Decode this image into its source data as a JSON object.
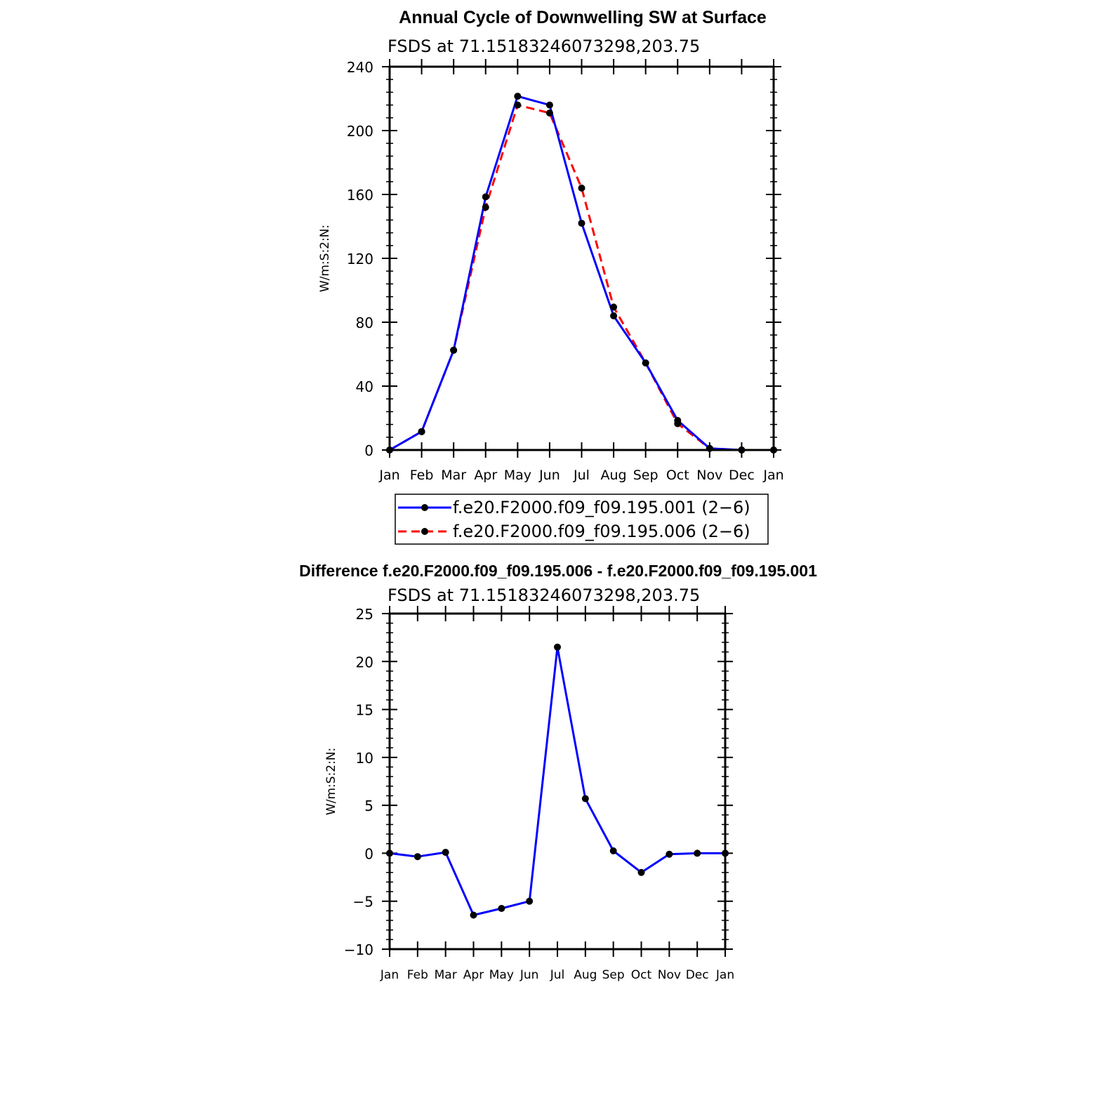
{
  "chart_data": [
    {
      "type": "line",
      "title": "Annual Cycle of Downwelling SW at Surface",
      "subtitle": "FSDS at 71.15183246073298,203.75",
      "ylabel": "W/m:S:2:N:",
      "xlabel": "",
      "categories": [
        "Jan",
        "Feb",
        "Mar",
        "Apr",
        "May",
        "Jun",
        "Jul",
        "Aug",
        "Sep",
        "Oct",
        "Nov",
        "Dec",
        "Jan"
      ],
      "ylim": [
        0,
        240
      ],
      "yticks": [
        0,
        40,
        80,
        120,
        160,
        200,
        240
      ],
      "grid": false,
      "legend_position": "bottom",
      "series": [
        {
          "name": "f.e20.F2000.f09_f09.195.001 (2−6)",
          "color": "#0000ff",
          "style": "solid",
          "values": [
            0,
            11.5,
            62.5,
            158.5,
            221.5,
            216,
            142,
            84,
            54.5,
            18.5,
            1,
            0,
            0
          ]
        },
        {
          "name": "f.e20.F2000.f09_f09.195.006 (2−6)",
          "color": "#ff0000",
          "style": "dashed",
          "values": [
            0,
            11.5,
            62.5,
            152,
            216,
            211,
            164,
            89.5,
            54.5,
            16.5,
            1,
            0,
            0
          ]
        }
      ]
    },
    {
      "type": "line",
      "title": "Difference f.e20.F2000.f09_f09.195.006 - f.e20.F2000.f09_f09.195.001",
      "subtitle": "FSDS at 71.15183246073298,203.75",
      "ylabel": "W/m:S:2:N:",
      "xlabel": "",
      "categories": [
        "Jan",
        "Feb",
        "Mar",
        "Apr",
        "May",
        "Jun",
        "Jul",
        "Aug",
        "Sep",
        "Oct",
        "Nov",
        "Dec",
        "Jan"
      ],
      "ylim": [
        -10,
        25
      ],
      "yticks": [
        -10,
        -5,
        0,
        5,
        10,
        15,
        20,
        25
      ],
      "ytick_labels": [
        "−10",
        "−5",
        "0",
        "5",
        "10",
        "15",
        "20",
        "25"
      ],
      "grid": false,
      "series": [
        {
          "color": "#0000ff",
          "style": "solid",
          "values": [
            0,
            -0.35,
            0.1,
            -6.45,
            -5.75,
            -5,
            21.5,
            5.7,
            0.25,
            -2,
            -0.1,
            0,
            0
          ]
        }
      ]
    }
  ]
}
